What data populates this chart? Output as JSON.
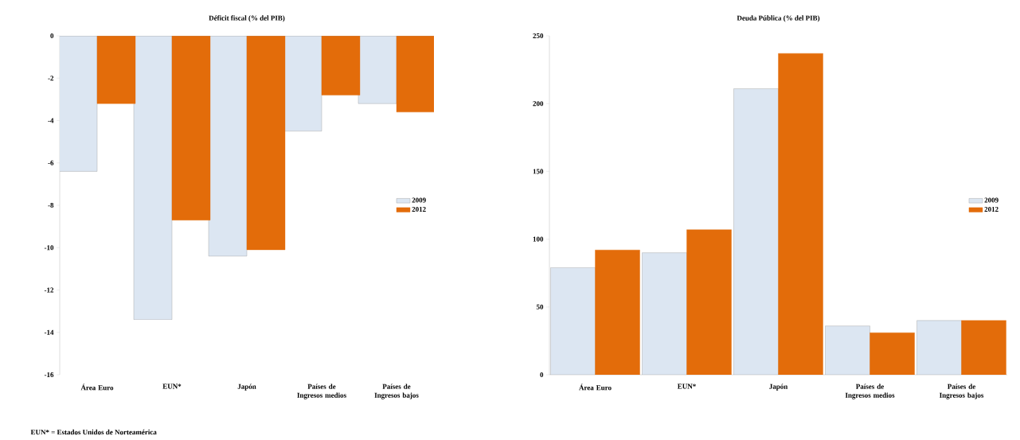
{
  "chart_data": [
    {
      "type": "bar",
      "title": "Déficit fiscal (% del PIB)",
      "categories": [
        "Área Euro",
        "EUN*",
        "Japón",
        "Países de Ingresos medios",
        "Países de Ingresos bajos"
      ],
      "series": [
        {
          "name": "2009",
          "color": "#dce6f2",
          "values": [
            -6.4,
            -13.4,
            -10.4,
            -4.5,
            -3.2
          ]
        },
        {
          "name": "2012",
          "color": "#e36c0a",
          "values": [
            -3.2,
            -8.7,
            -10.1,
            -2.8,
            -3.6
          ]
        }
      ],
      "ylim": [
        -16,
        0
      ],
      "yticks": [
        -16,
        -14,
        -12,
        -10,
        -8,
        -6,
        -4,
        -2,
        0
      ],
      "legend": "right",
      "grid": false,
      "annotations": [
        "EUN* = Estados Unidos de Norteamérica"
      ]
    },
    {
      "type": "bar",
      "title": "Deuda Pública (% del PIB)",
      "categories": [
        "Área Euro",
        "EUN*",
        "Japón",
        "Países de Ingresos medios",
        "Países de Ingresos bajos"
      ],
      "series": [
        {
          "name": "2009",
          "color": "#dce6f2",
          "values": [
            79,
            90,
            211,
            36,
            40
          ]
        },
        {
          "name": "2012",
          "color": "#e36c0a",
          "values": [
            92,
            107,
            237,
            31,
            40
          ]
        }
      ],
      "ylim": [
        0,
        250
      ],
      "yticks": [
        0,
        50,
        100,
        150,
        200,
        250
      ],
      "legend": "right",
      "grid": false
    }
  ]
}
